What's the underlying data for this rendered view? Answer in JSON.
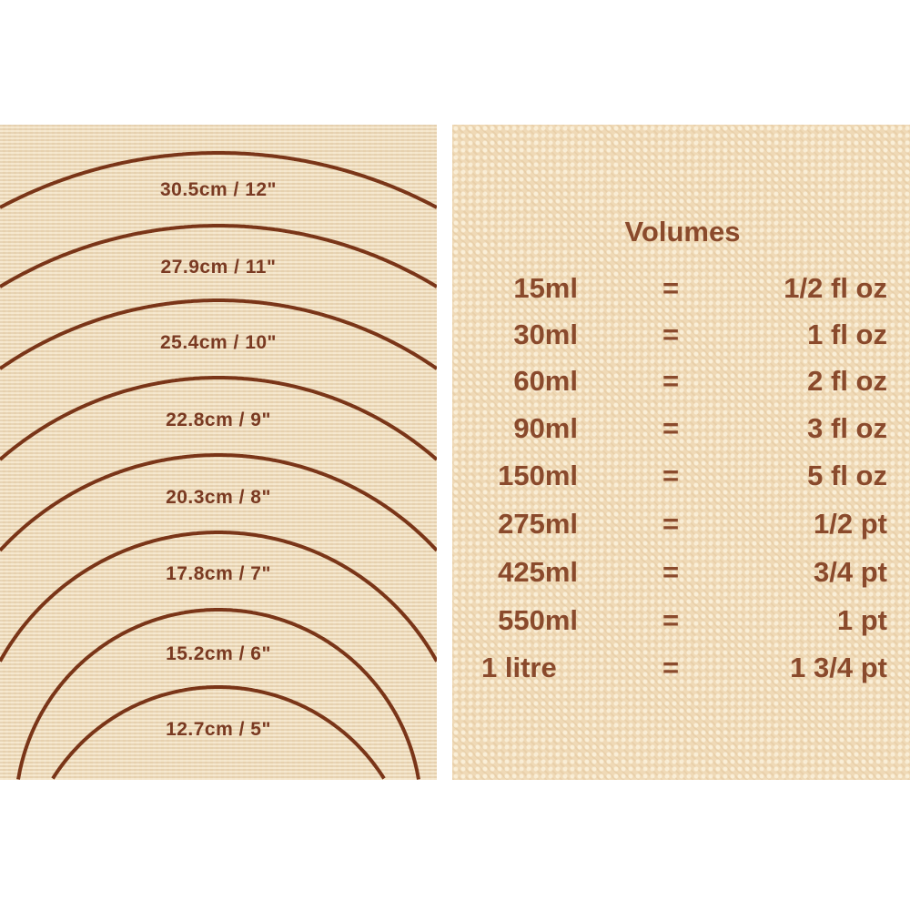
{
  "colors": {
    "line": "#7a3518",
    "text": "#7a3a22",
    "mat": "#ecd9b8"
  },
  "circles": [
    {
      "label": "30.5cm / 12\""
    },
    {
      "label": "27.9cm / 11\""
    },
    {
      "label": "25.4cm / 10\""
    },
    {
      "label": "22.8cm / 9\""
    },
    {
      "label": "20.3cm / 8\""
    },
    {
      "label": "17.8cm / 7\""
    },
    {
      "label": "15.2cm / 6\""
    },
    {
      "label": "12.7cm / 5\""
    }
  ],
  "volumes": {
    "title": "Volumes",
    "rows": [
      {
        "metric": "15ml",
        "eq": "=",
        "imperial": "1/2 fl oz"
      },
      {
        "metric": "30ml",
        "eq": "=",
        "imperial": "1 fl oz"
      },
      {
        "metric": "60ml",
        "eq": "=",
        "imperial": "2 fl oz"
      },
      {
        "metric": "90ml",
        "eq": "=",
        "imperial": "3 fl oz"
      },
      {
        "metric": "150ml",
        "eq": "=",
        "imperial": "5 fl oz"
      },
      {
        "metric": "275ml",
        "eq": "=",
        "imperial": "1/2 pt"
      },
      {
        "metric": "425ml",
        "eq": "=",
        "imperial": "3/4 pt"
      },
      {
        "metric": "550ml",
        "eq": "=",
        "imperial": "1 pt"
      },
      {
        "metric": "1 litre",
        "eq": "=",
        "imperial": "1 3/4 pt"
      }
    ]
  }
}
